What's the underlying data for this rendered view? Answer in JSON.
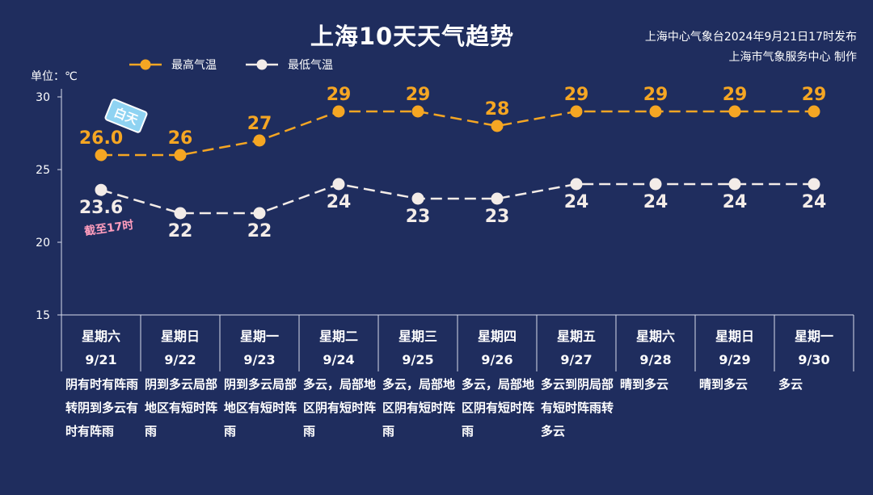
{
  "title": "上海10天天气趋势",
  "source_lines": [
    "上海中心气象台2024年9月21日17时发布",
    "上海市气象服务中心 制作"
  ],
  "unit_label": "单位：℃",
  "stickers": {
    "day": "白天",
    "cutoff": "截至17时"
  },
  "colors": {
    "background": "#1f2d5e",
    "high": "#f5a623",
    "low": "#f3ece8",
    "axis": "#d7dbea"
  },
  "chart_data": {
    "type": "line",
    "title": "上海10天天气趋势",
    "ylabel": "单位：℃",
    "ylim": [
      15,
      30
    ],
    "yticks": [
      "15",
      "20",
      "25",
      "30"
    ],
    "grid": false,
    "legend_position": "top-left",
    "categories": [
      {
        "weekday": "星期六",
        "date": "9/21"
      },
      {
        "weekday": "星期日",
        "date": "9/22"
      },
      {
        "weekday": "星期一",
        "date": "9/23"
      },
      {
        "weekday": "星期二",
        "date": "9/24"
      },
      {
        "weekday": "星期三",
        "date": "9/25"
      },
      {
        "weekday": "星期四",
        "date": "9/26"
      },
      {
        "weekday": "星期五",
        "date": "9/27"
      },
      {
        "weekday": "星期六",
        "date": "9/28"
      },
      {
        "weekday": "星期日",
        "date": "9/29"
      },
      {
        "weekday": "星期一",
        "date": "9/30"
      }
    ],
    "series": [
      {
        "name": "最高气温",
        "values": [
          26.0,
          26,
          27,
          29,
          29,
          28,
          29,
          29,
          29,
          29
        ],
        "labels": [
          "26.0",
          "26",
          "27",
          "29",
          "29",
          "28",
          "29",
          "29",
          "29",
          "29"
        ]
      },
      {
        "name": "最低气温",
        "values": [
          23.6,
          22,
          22,
          24,
          23,
          23,
          24,
          24,
          24,
          24
        ],
        "labels": [
          "23.6",
          "22",
          "22",
          "24",
          "23",
          "23",
          "24",
          "24",
          "24",
          "24"
        ]
      }
    ],
    "descriptions": [
      "阴有时有阵雨转阴到多云有时有阵雨",
      "阴到多云局部地区有短时阵雨",
      "阴到多云局部地区有短时阵雨",
      "多云，局部地区阴有短时阵雨",
      "多云，局部地区阴有短时阵雨",
      "多云，局部地区阴有短时阵雨",
      "多云到阴局部有短时阵雨转多云",
      "晴到多云",
      "晴到多云",
      "多云"
    ]
  }
}
